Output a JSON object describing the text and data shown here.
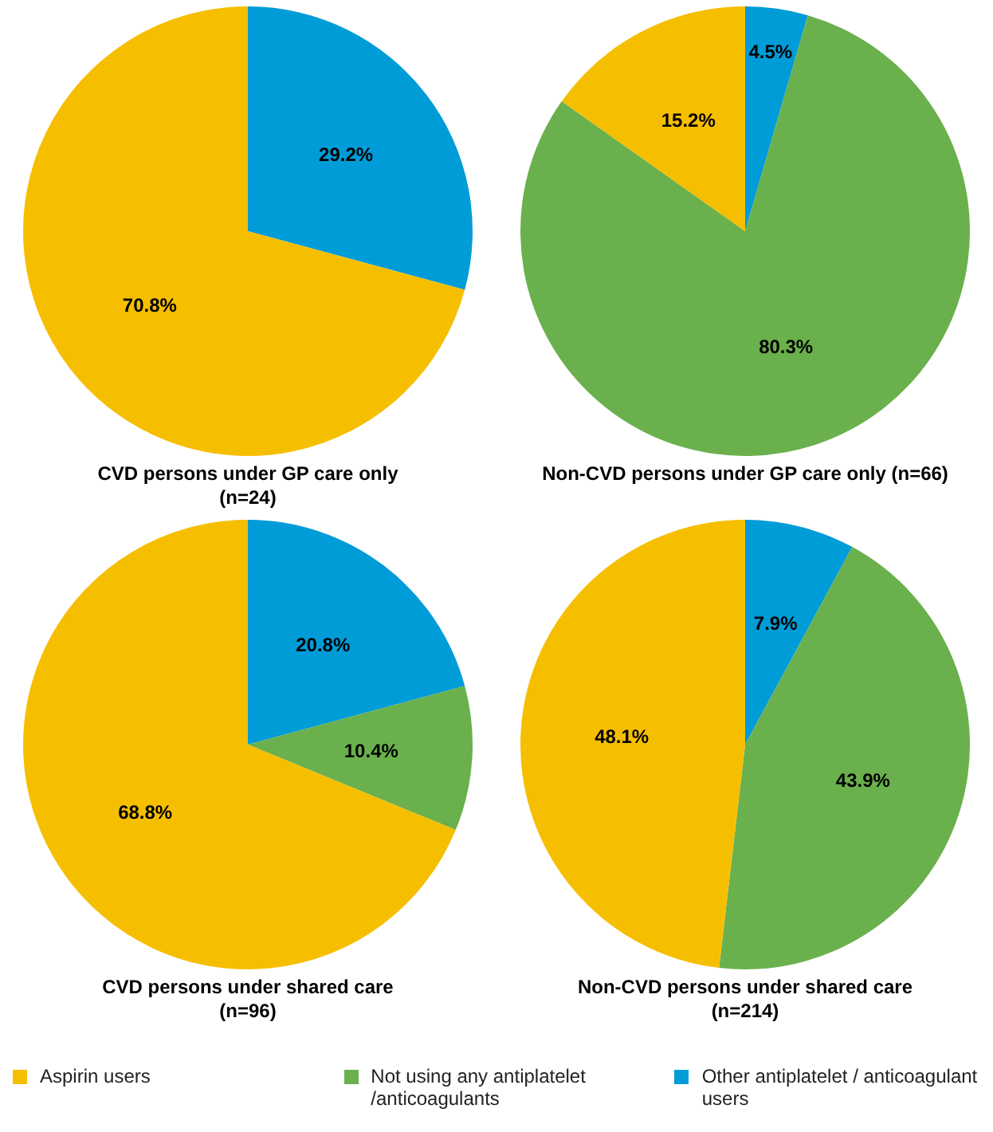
{
  "chart_data": [
    {
      "type": "pie",
      "title": "CVD persons under GP care only",
      "subtitle": "(n=24)",
      "categories": [
        "Other antiplatelet / anticoagulant users",
        "Not using any antiplatelet /anticoagulants",
        "Aspirin users"
      ],
      "values": [
        29.2,
        0,
        70.8
      ],
      "colors": [
        "#009cd8",
        "#6ab04c",
        "#f5bf00"
      ],
      "value_labels": [
        "29.2%",
        null,
        "70.8%"
      ],
      "legend": "bottom"
    },
    {
      "type": "pie",
      "title": "Non-CVD persons under GP care only (n=66)",
      "categories": [
        null,
        null,
        null
      ],
      "values": [
        4.5,
        80.3,
        15.2
      ],
      "colors": [
        "#009cd8",
        "#6ab04c",
        "#f5bf00"
      ],
      "value_labels": [
        "4.5%",
        "80.3%",
        "15.2%"
      ]
    },
    {
      "type": "pie",
      "title": "CVD persons under shared care",
      "subtitle": "(n=96)",
      "categories": [
        null,
        null,
        null
      ],
      "values": [
        20.8,
        10.4,
        68.8
      ],
      "colors": [
        "#009cd8",
        "#6ab04c",
        "#f5bf00"
      ],
      "value_labels": [
        "20.8%",
        "10.4%",
        "68.8%"
      ]
    },
    {
      "type": "pie",
      "title": "Non-CVD persons under shared care",
      "subtitle": "(n=214)",
      "categories": [
        null,
        null,
        null
      ],
      "values": [
        7.9,
        43.9,
        48.1
      ],
      "colors": [
        "#009cd8",
        "#6ab04c",
        "#f5bf00"
      ],
      "value_labels": [
        "7.9%",
        "43.9%",
        "48.1%"
      ]
    }
  ]
}
